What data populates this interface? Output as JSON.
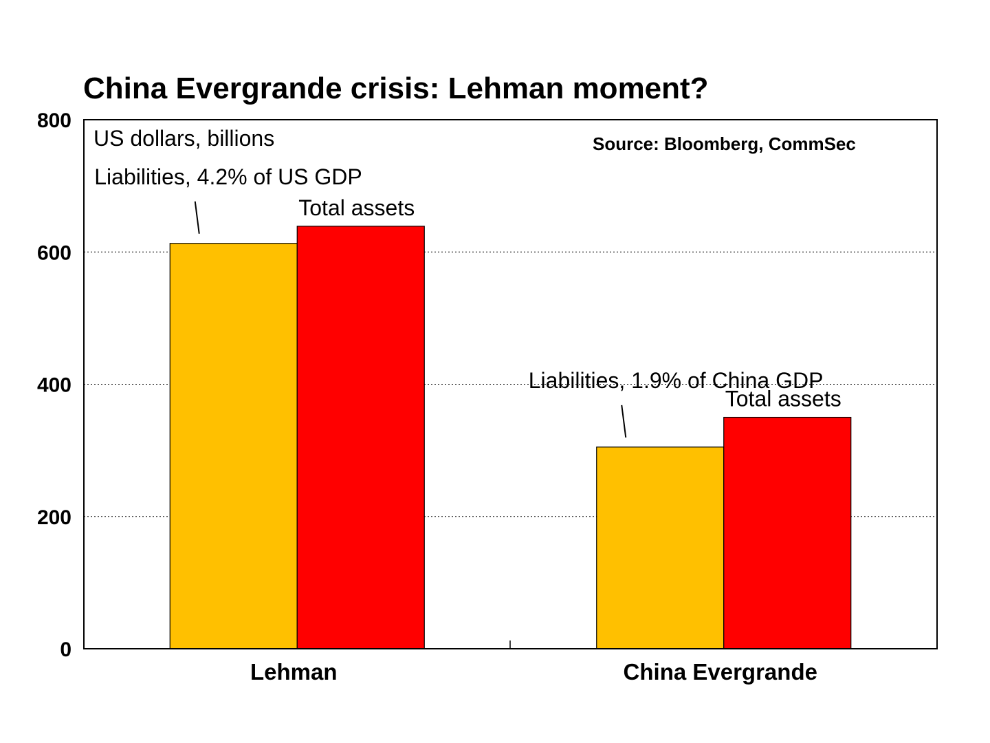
{
  "chart_data": {
    "type": "bar",
    "title": "China Evergrande crisis: Lehman moment?",
    "unit_note": "US dollars, billions",
    "source": "Source: Bloomberg, CommSec",
    "categories": [
      "Lehman",
      "China Evergrande"
    ],
    "series": [
      {
        "key": "liabilities",
        "color": "#FFC000",
        "values": [
          613,
          305
        ]
      },
      {
        "key": "total_assets",
        "color": "#FF0000",
        "values": [
          639,
          350
        ]
      }
    ],
    "ylim": [
      0,
      800
    ],
    "yticks": [
      "0",
      "200",
      "400",
      "600",
      "800"
    ],
    "grid": "horizontal dotted",
    "annotations": [
      {
        "text": "Liabilities, 4.2% of US GDP",
        "category": 0,
        "series": 0
      },
      {
        "text": "Total assets",
        "category": 0,
        "series": 1
      },
      {
        "text": "Liabilities, 1.9% of China GDP",
        "category": 1,
        "series": 0
      },
      {
        "text": "Total assets",
        "category": 1,
        "series": 1
      }
    ]
  }
}
